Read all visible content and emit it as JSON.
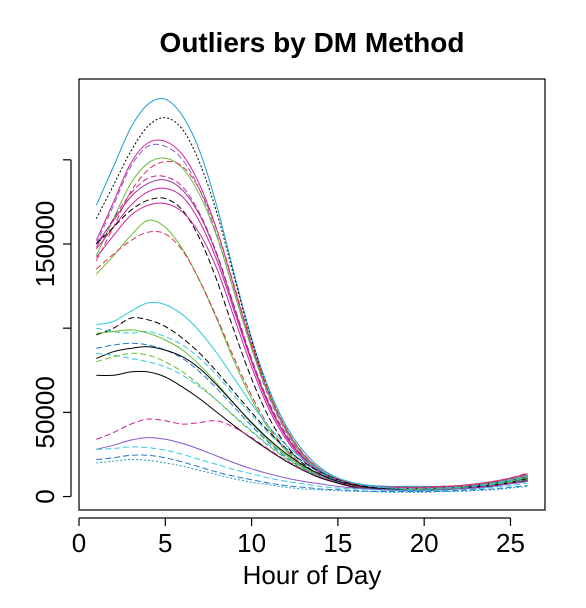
{
  "chart_data": {
    "type": "line",
    "title": "Outliers by DM Method",
    "xlabel": "Hour of Day",
    "ylabel": "",
    "xlim": [
      0,
      27
    ],
    "ylim": [
      -8000,
      248000
    ],
    "x_ticks": [
      0,
      5,
      10,
      15,
      20,
      25
    ],
    "x_tick_labels": [
      "0",
      "5",
      "10",
      "15",
      "20",
      "25"
    ],
    "y_ticks": [
      0,
      50000,
      100000,
      150000,
      200000
    ],
    "y_tick_labels": [
      "0",
      "50000",
      "",
      "150000",
      ""
    ],
    "grid": false,
    "legend": "none",
    "x": [
      1,
      2,
      3,
      4,
      5,
      6,
      7,
      8,
      9,
      10,
      11,
      12,
      13,
      14,
      15,
      16,
      17,
      18,
      19,
      20,
      21,
      22,
      23,
      24,
      25,
      26
    ],
    "series": [
      {
        "color": "#1f9bcf",
        "dash": "solid",
        "values": [
          173000,
          196000,
          219000,
          233000,
          236000,
          226000,
          205000,
          172000,
          132000,
          94000,
          64000,
          42000,
          27000,
          17000,
          11000,
          8000,
          6500,
          6000,
          6000,
          6000,
          6000,
          6500,
          7000,
          8000,
          9500,
          11500
        ]
      },
      {
        "color": "#000000",
        "dash": "dot",
        "values": [
          165000,
          185000,
          205000,
          220000,
          225000,
          218000,
          198000,
          168000,
          130000,
          93000,
          62000,
          40000,
          25000,
          15500,
          10000,
          7000,
          5500,
          5000,
          5000,
          5000,
          5000,
          5500,
          6000,
          7000,
          8500,
          10000
        ]
      },
      {
        "color": "#cc2299",
        "dash": "solid",
        "values": [
          152000,
          175000,
          198000,
          210000,
          211000,
          203000,
          185000,
          158000,
          124000,
          90000,
          61000,
          40000,
          25000,
          16000,
          10500,
          7500,
          6000,
          5500,
          5500,
          5500,
          6000,
          6500,
          7500,
          9000,
          11000,
          13500
        ]
      },
      {
        "color": "#8855cc",
        "dash": "dash",
        "values": [
          150000,
          173000,
          196000,
          208000,
          208000,
          200000,
          182000,
          155000,
          121000,
          88000,
          59000,
          38500,
          24000,
          15000,
          10000,
          7000,
          5500,
          5000,
          5000,
          5000,
          5500,
          6000,
          7000,
          8500,
          10500,
          13000
        ]
      },
      {
        "color": "#66bb33",
        "dash": "solid",
        "values": [
          143000,
          165000,
          186000,
          198000,
          201000,
          195000,
          179000,
          154000,
          121000,
          88000,
          60000,
          39000,
          24500,
          15500,
          10000,
          7000,
          5500,
          5000,
          5000,
          5000,
          5500,
          6000,
          7000,
          8500,
          10500,
          13000
        ]
      },
      {
        "color": "#dd3355",
        "dash": "dash",
        "values": [
          140000,
          160000,
          181000,
          194000,
          199000,
          196000,
          182000,
          158000,
          125000,
          91000,
          62000,
          40500,
          25500,
          16000,
          10500,
          7500,
          6000,
          5500,
          5500,
          5500,
          6000,
          6500,
          7500,
          9000,
          11000,
          14000
        ]
      },
      {
        "color": "#cc2299",
        "dash": "dash",
        "values": [
          148000,
          165000,
          180000,
          189000,
          190000,
          184000,
          168000,
          144000,
          113000,
          82000,
          56000,
          37000,
          23500,
          15000,
          10000,
          7000,
          5500,
          5000,
          5000,
          5000,
          5500,
          6000,
          7000,
          8500,
          10500,
          13000
        ]
      },
      {
        "color": "#993399",
        "dash": "solid",
        "values": [
          150000,
          164000,
          178000,
          186000,
          188000,
          182000,
          167000,
          143000,
          112000,
          81000,
          55000,
          36000,
          23000,
          14500,
          9500,
          6500,
          5000,
          4500,
          4500,
          4500,
          5000,
          5500,
          6500,
          8000,
          10000,
          12500
        ]
      },
      {
        "color": "#cc2299",
        "dash": "solid",
        "values": [
          147000,
          160000,
          173000,
          181000,
          183000,
          178000,
          163000,
          140000,
          110000,
          80000,
          54000,
          35500,
          22500,
          14000,
          9500,
          6500,
          5000,
          4500,
          4500,
          4500,
          5000,
          5500,
          6500,
          8000,
          10000,
          12500
        ]
      },
      {
        "color": "#000000",
        "dash": "dash",
        "values": [
          150000,
          160000,
          170000,
          176000,
          177000,
          170000,
          153000,
          128000,
          98000,
          70000,
          47000,
          30500,
          19500,
          12500,
          8000,
          5500,
          4500,
          4000,
          4000,
          4000,
          4500,
          5000,
          6000,
          7500,
          9000,
          11000
        ]
      },
      {
        "color": "#cc2299",
        "dash": "solid",
        "values": [
          142000,
          155000,
          167000,
          173000,
          174000,
          169000,
          156000,
          135000,
          106000,
          77000,
          52000,
          34000,
          21500,
          13500,
          9000,
          6000,
          4500,
          4000,
          4000,
          4000,
          4500,
          5000,
          6000,
          7500,
          9500,
          12000
        ]
      },
      {
        "color": "#66bb33",
        "dash": "solid",
        "values": [
          132000,
          143000,
          155000,
          164000,
          160000,
          147000,
          128000,
          105000,
          80000,
          58000,
          40000,
          27000,
          18000,
          12000,
          8000,
          5500,
          4500,
          4000,
          4000,
          4000,
          4500,
          5000,
          6000,
          7500,
          9500,
          12000
        ]
      },
      {
        "color": "#dd3355",
        "dash": "dash",
        "values": [
          135000,
          144000,
          152000,
          157000,
          156000,
          146000,
          128000,
          106000,
          82000,
          60000,
          41500,
          28000,
          18500,
          12000,
          8000,
          5500,
          4500,
          4000,
          4000,
          4000,
          4500,
          5000,
          6000,
          7500,
          9500,
          12000
        ]
      },
      {
        "color": "#33ccdd",
        "dash": "solid",
        "values": [
          102000,
          104000,
          110000,
          115000,
          114000,
          108000,
          98000,
          85000,
          70000,
          55000,
          41500,
          30500,
          22000,
          15500,
          11000,
          8000,
          6000,
          5000,
          4500,
          4500,
          5000,
          5500,
          6500,
          8000,
          10000,
          12500
        ]
      },
      {
        "color": "#000000",
        "dash": "dash",
        "values": [
          96000,
          100000,
          106000,
          105000,
          101000,
          94000,
          85000,
          74000,
          62000,
          50000,
          38500,
          28500,
          20500,
          14500,
          10000,
          7000,
          5500,
          4500,
          4500,
          4500,
          5000,
          5500,
          6500,
          8000,
          9500,
          11500
        ]
      },
      {
        "color": "#33ccdd",
        "dash": "dash",
        "values": [
          100000,
          98000,
          97000,
          98000,
          95000,
          90000,
          82000,
          72000,
          60000,
          48500,
          37500,
          28000,
          20000,
          14000,
          9500,
          6500,
          5000,
          4500,
          4500,
          4500,
          5000,
          5500,
          6500,
          8000,
          9500,
          11500
        ]
      },
      {
        "color": "#66bb33",
        "dash": "solid",
        "values": [
          97000,
          98000,
          99000,
          97000,
          93000,
          87000,
          78000,
          67000,
          55000,
          43500,
          33000,
          24500,
          17500,
          12500,
          8500,
          6000,
          4500,
          4000,
          4000,
          4000,
          4500,
          5000,
          6000,
          7500,
          9000,
          11000
        ]
      },
      {
        "color": "#2277cc",
        "dash": "dash",
        "values": [
          88000,
          90000,
          91000,
          90000,
          87000,
          82000,
          74000,
          64000,
          53000,
          42000,
          32000,
          23500,
          17000,
          12000,
          8500,
          6000,
          4500,
          4000,
          4000,
          4000,
          4500,
          5000,
          6000,
          7000,
          8500,
          10500
        ]
      },
      {
        "color": "#000000",
        "dash": "solid",
        "values": [
          82000,
          86000,
          88000,
          89000,
          87000,
          83000,
          76000,
          66000,
          55000,
          44000,
          34000,
          25500,
          18500,
          13000,
          9000,
          6500,
          5000,
          4500,
          4000,
          4000,
          4500,
          5000,
          6000,
          7000,
          8500,
          10500
        ]
      },
      {
        "color": "#33ccdd",
        "dash": "dash",
        "values": [
          85000,
          84000,
          82000,
          80000,
          77000,
          72000,
          65000,
          57000,
          48000,
          39000,
          30500,
          23000,
          17000,
          12000,
          8500,
          6000,
          4500,
          4000,
          4000,
          4000,
          4500,
          5000,
          6000,
          7000,
          8500,
          10000
        ]
      },
      {
        "color": "#66bb33",
        "dash": "dash",
        "values": [
          80000,
          83000,
          85000,
          84000,
          80000,
          74000,
          66000,
          57000,
          47500,
          38500,
          30000,
          22500,
          16500,
          11500,
          8000,
          6000,
          4500,
          4000,
          4000,
          4000,
          4500,
          5000,
          5500,
          6500,
          8000,
          10000
        ]
      },
      {
        "color": "#000000",
        "dash": "solid",
        "values": [
          72000,
          72000,
          74000,
          74000,
          71000,
          65000,
          58000,
          50000,
          42000,
          34500,
          27500,
          21000,
          15500,
          11000,
          8000,
          5500,
          4500,
          4000,
          3500,
          3500,
          4000,
          4500,
          5500,
          6500,
          8000,
          9500
        ]
      },
      {
        "color": "#cc2299",
        "dash": "dash",
        "values": [
          34000,
          38000,
          43000,
          46000,
          45000,
          43000,
          44000,
          45000,
          41000,
          35000,
          28000,
          21500,
          16000,
          11500,
          8500,
          6000,
          4500,
          4000,
          3500,
          3500,
          4000,
          4500,
          5500,
          6500,
          8000,
          9500
        ]
      },
      {
        "color": "#8855cc",
        "dash": "solid",
        "values": [
          28000,
          30500,
          33500,
          35000,
          34000,
          31500,
          28000,
          24000,
          20000,
          16500,
          13500,
          11000,
          9000,
          7500,
          6000,
          5000,
          4500,
          4000,
          3500,
          3500,
          4000,
          4500,
          5000,
          6000,
          7500,
          9000
        ]
      },
      {
        "color": "#33ccdd",
        "dash": "dash",
        "values": [
          28000,
          28500,
          29500,
          29000,
          27500,
          25000,
          22000,
          19000,
          16000,
          13500,
          11000,
          9000,
          7500,
          6000,
          5000,
          4500,
          4000,
          3500,
          3500,
          3500,
          3500,
          4000,
          4500,
          5500,
          6500,
          8000
        ]
      },
      {
        "color": "#2277cc",
        "dash": "dash",
        "values": [
          22000,
          23000,
          24500,
          24500,
          23000,
          20500,
          17500,
          14500,
          12000,
          10000,
          8000,
          6500,
          5500,
          4500,
          4000,
          3500,
          3000,
          3000,
          3000,
          3000,
          3000,
          3500,
          4000,
          4500,
          5500,
          6500
        ]
      },
      {
        "color": "#1f9bcf",
        "dash": "dot",
        "values": [
          20000,
          21000,
          22000,
          21500,
          20000,
          18000,
          15500,
          13000,
          10500,
          8500,
          7000,
          5500,
          4500,
          4000,
          3500,
          3000,
          3000,
          2500,
          2500,
          2500,
          3000,
          3000,
          3500,
          4000,
          5000,
          6000
        ]
      }
    ]
  }
}
